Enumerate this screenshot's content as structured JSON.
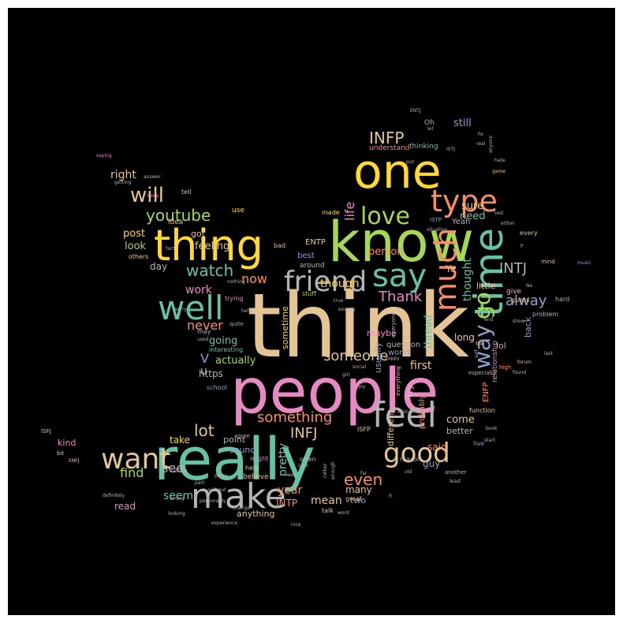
{
  "palette": {
    "background": "#000000",
    "pink": "#e78ac3",
    "teal": "#66c2a5",
    "orange": "#fc8d62",
    "blue": "#8da0cb",
    "green": "#a6d854",
    "yellow": "#ffd92f",
    "tan": "#e5c494",
    "gray": "#b3b3b3"
  },
  "words": {
    "think": "think",
    "people": "people",
    "really": "really",
    "know": "know",
    "one": "one",
    "thing": "thing",
    "time": "time",
    "make": "make",
    "feel": "feel",
    "well": "well",
    "say": "say",
    "friend": "friend",
    "much": "much",
    "type": "type",
    "want": "want",
    "good": "good",
    "love": "love",
    "way": "way",
    "go": "go",
    "will": "will",
    "youtube": "youtube",
    "watch": "watch",
    "INFP": "INFP",
    "INTJ": "INTJ",
    "INFJ": "INFJ",
    "lot": "lot",
    "something": "something",
    "someone": "someone",
    "Thank": "Thank",
    "alway": "alway",
    "now": "now",
    "never": "never",
    "see": "see",
    "find": "find",
    "seem": "seem",
    "even": "even",
    "year": "year",
    "mean": "mean",
    "INTP": "INTP",
    "right": "right",
    "post": "post",
    "look": "look",
    "feeling": "feeling",
    "got": "got",
    "work": "work",
    "going": "going",
    "actually": "actually",
    "though": "though",
    "thought": "thought",
    "life": "life",
    "person": "person",
    "sure": "sure",
    "need": "need",
    "still": "still",
    "first": "first",
    "guy": "guy",
    "said": "said",
    "come": "come",
    "better": "better",
    "many": "many",
    "two": "two",
    "anything": "anything",
    "https": "https",
    "pretty": "pretty",
    "take": "take",
    "sound": "sound",
    "point": "point",
    "read": "read",
    "kind": "kind",
    "day": "day",
    "thread": "thread",
    "maybe": "maybe",
    "lol": "lol",
    "back": "back",
    "long": "long",
    "usually": "usually",
    "question": "question",
    "try": "try",
    "world": "world",
    "little": "little",
    "give": "give",
    "Ye": "Ye",
    "V": "V",
    "u": "u",
    "sometime": "sometime",
    "different": "different",
    "probably": "probably",
    "relationship": "relationship",
    "ENFP": "ENFP",
    "ENTP": "ENTP",
    "best": "best",
    "around": "around",
    "Yeah": "Yeah",
    "Oh": "Oh",
    "understand": "understand",
    "thinking": "thinking",
    "ISTP": "ISTP",
    "made": "made",
    "bad": "bad",
    "trying": "trying",
    "stuff": "stuff",
    "idea": "idea",
    "use": "use",
    "tell": "tell",
    "others": "others",
    "great": "great",
    "ISFP": "ISFP",
    "school": "school",
    "interesting": "interesting",
    "may": "may",
    "might": "might",
    "help": "help",
    "believe": "believe",
    "talk": "talk",
    "often": "often",
    "reason": "reason",
    "live": "live",
    "another": "another",
    "especially": "especially",
    "every": "every",
    "hard": "hard",
    "guess": "guess",
    "fun": "fun",
    "problem": "problem",
    "function": "function",
    "ISFJ": "ISFJ",
    "ENTJ": "ENTJ",
    "ISTJ": "ISTJ",
    "saying": "saying",
    "getting": "getting",
    "answer": "answer",
    "keep": "keep",
    "mind": "mind",
    "music": "music",
    "last": "last",
    "high": "high",
    "forum": "forum",
    "found": "found",
    "game": "game",
    "real": "real",
    "let": "let",
    "nice": "nice",
    "experience": "experience",
    "looking": "looking",
    "talking": "talking",
    "place": "place",
    "part": "part",
    "without": "without",
    "definitely": "definitely",
    "Welcome": "Welcome",
    "enjoy": "enjoy",
    "social": "social",
    "girl": "girl",
    "happy": "happy",
    "everyone": "everyone",
    "everything": "everything",
    "quite": "quite",
    "used": "used",
    "worry": "worry",
    "hehe": "hehe",
    "exactly": "exactly",
    "agree": "agree",
    "bit": "bit",
    "ENFJ": "ENFJ",
    "wrong": "wrong",
    "ask": "ask",
    "far": "far",
    "rather": "rather",
    "enough": "enough",
    "old": "old",
    "least": "least",
    "start": "start",
    "book": "book",
    "personality": "personality",
    "nothing": "nothing",
    "change": "change",
    "Fi": "Fi",
    "Fe": "Fe",
    "either": "either",
    "situation": "situation",
    "fact": "fact",
    "care": "care",
    "true": "true",
    "hate": "hate",
    "word": "word",
    "test": "test",
    "put": "put",
    "end": "end",
    "show": "show",
    "anyone": "anyone",
    "self": "self",
    "P": "P",
    "Ne": "Ne"
  }
}
